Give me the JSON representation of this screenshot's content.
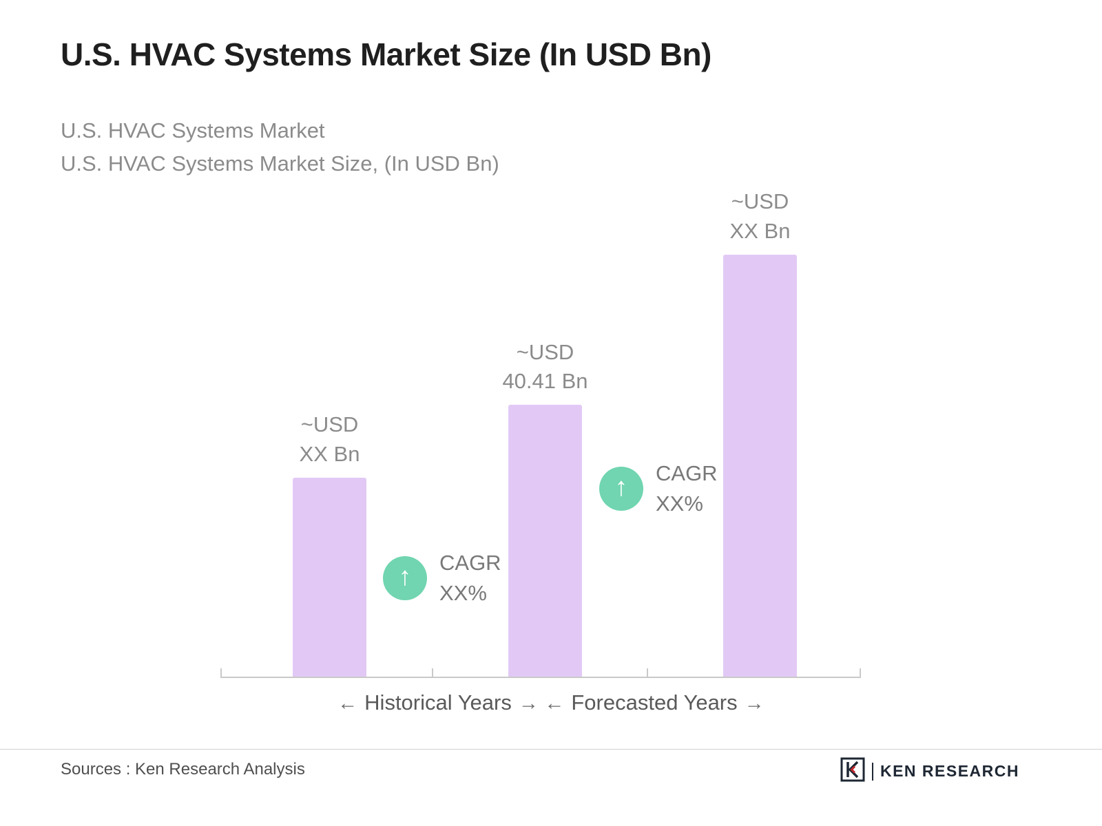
{
  "title": "U.S. HVAC Systems Market Size (In USD Bn)",
  "subtitle": {
    "line1": "U.S. HVAC Systems Market",
    "line2": "U.S. HVAC Systems Market Size, (In USD Bn)"
  },
  "chart_data": {
    "type": "bar",
    "title": "U.S. HVAC Systems Market Size, (In USD Bn)",
    "grid": false,
    "legend": "none",
    "bars": [
      {
        "value": null,
        "value_label_line1": "~USD",
        "value_label_line2": "XX Bn",
        "height_pct": 41
      },
      {
        "value": 40.41,
        "value_label_line1": "~USD",
        "value_label_line2": "40.41 Bn",
        "height_pct": 56
      },
      {
        "value": null,
        "value_label_line1": "~USD",
        "value_label_line2": "XX Bn",
        "height_pct": 87
      }
    ],
    "annotations": [
      {
        "line1": "CAGR",
        "line2": "XX%",
        "position": "between bar 1 and bar 2"
      },
      {
        "line1": "CAGR",
        "line2": "XX%",
        "position": "between bar 2 and bar 3"
      }
    ],
    "x_segments": [
      {
        "arrow_left": "←",
        "label": "Historical Years",
        "arrow_right": "→"
      },
      {
        "arrow_left": "←",
        "label": "Forecasted Years",
        "arrow_right": "→"
      }
    ]
  },
  "footer": {
    "sources": "Sources : Ken Research Analysis",
    "brand": "KEN RESEARCH"
  },
  "colors": {
    "bar": "#e2c9f5",
    "badge": "#70d5b0",
    "title": "#1f1f1f",
    "subtitle": "#8b8b8b",
    "axis": "#c9c9c9",
    "logo-dark": "#1e2733",
    "logo-red": "#c0272d"
  }
}
